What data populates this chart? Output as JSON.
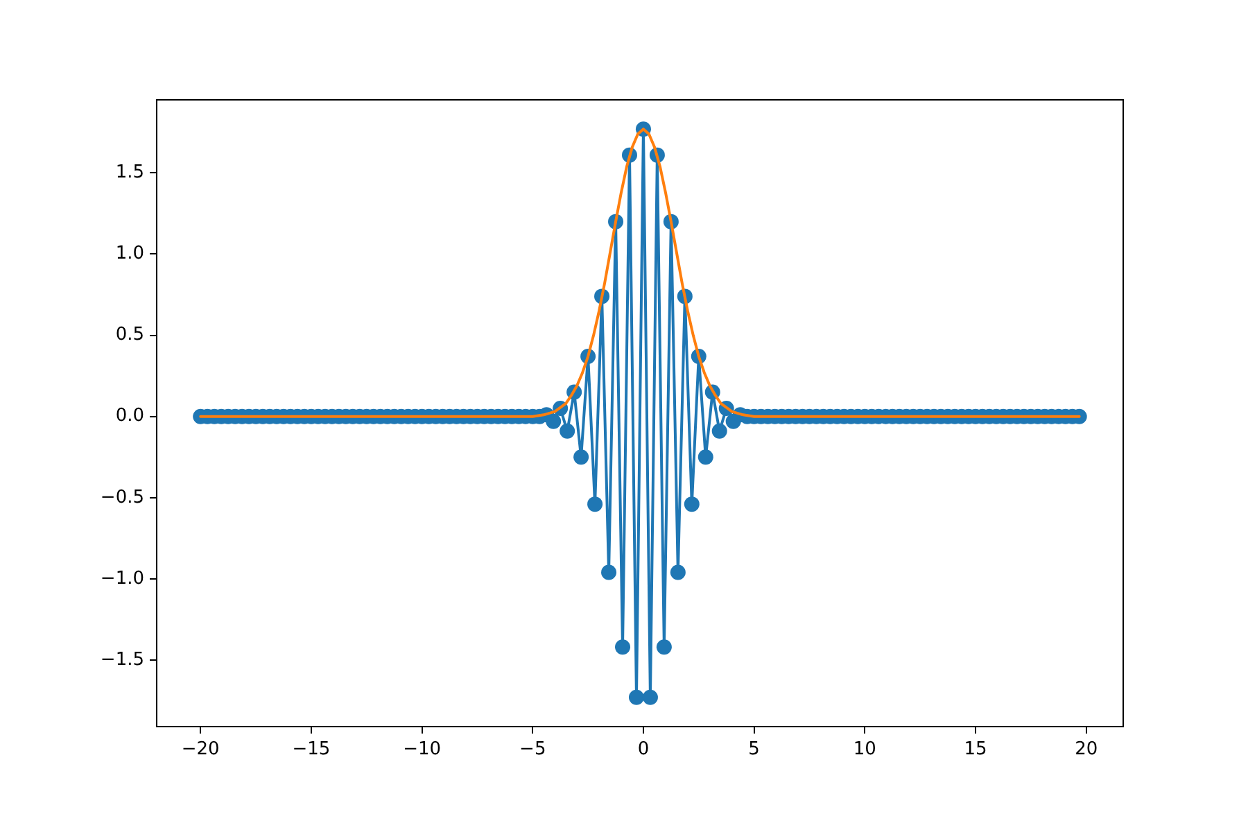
{
  "chart_data": {
    "type": "line",
    "xlim": [
      -21.98,
      21.67
    ],
    "xticks": [
      {
        "value": -20,
        "label": "−20"
      },
      {
        "value": -15,
        "label": "−15"
      },
      {
        "value": -10,
        "label": "−10"
      },
      {
        "value": -5,
        "label": "−5"
      },
      {
        "value": 0,
        "label": "0"
      },
      {
        "value": 5,
        "label": "5"
      },
      {
        "value": 10,
        "label": "10"
      },
      {
        "value": 15,
        "label": "15"
      },
      {
        "value": 20,
        "label": "20"
      }
    ],
    "ylim": [
      -1.91,
      1.95
    ],
    "yticks": [
      {
        "value": -1.5,
        "label": "−1.5"
      },
      {
        "value": -1,
        "label": "−1.0"
      },
      {
        "value": -0.5,
        "label": "−0.5"
      },
      {
        "value": 0,
        "label": "0.0"
      },
      {
        "value": 0.5,
        "label": "0.5"
      },
      {
        "value": 1,
        "label": "1.0"
      },
      {
        "value": 1.5,
        "label": "1.5"
      }
    ],
    "grid": false,
    "legend": false,
    "line_style": "solid",
    "series": [
      {
        "color": "#1f77b4",
        "marker": "circle",
        "x": [
          -20,
          -19.6875,
          -19.375,
          -19.0625,
          -18.75,
          -18.4375,
          -18.125,
          -17.8125,
          -17.5,
          -17.1875,
          -16.875,
          -16.5625,
          -16.25,
          -15.9375,
          -15.625,
          -15.3125,
          -15,
          -14.6875,
          -14.375,
          -14.0625,
          -13.75,
          -13.4375,
          -13.125,
          -12.8125,
          -12.5,
          -12.1875,
          -11.875,
          -11.5625,
          -11.25,
          -10.9375,
          -10.625,
          -10.3125,
          -10,
          -9.6875,
          -9.375,
          -9.0625,
          -8.75,
          -8.4375,
          -8.125,
          -7.8125,
          -7.5,
          -7.1875,
          -6.875,
          -6.5625,
          -6.25,
          -5.9375,
          -5.625,
          -5.3125,
          -5,
          -4.6875,
          -4.375,
          -4.0625,
          -3.75,
          -3.4375,
          -3.125,
          -2.8125,
          -2.5,
          -2.1875,
          -1.875,
          -1.5625,
          -1.25,
          -0.9375,
          -0.625,
          -0.3125,
          0,
          0.3125,
          0.625,
          0.9375,
          1.25,
          1.5625,
          1.875,
          2.1875,
          2.5,
          2.8125,
          3.125,
          3.4375,
          3.75,
          4.0625,
          4.375,
          4.6875,
          5,
          5.3125,
          5.625,
          5.9375,
          6.25,
          6.5625,
          6.875,
          7.1875,
          7.5,
          7.8125,
          8.125,
          8.4375,
          8.75,
          9.0625,
          9.375,
          9.6875,
          10,
          10.3125,
          10.625,
          10.9375,
          11.25,
          11.5625,
          11.875,
          12.1875,
          12.5,
          12.8125,
          13.125,
          13.4375,
          13.75,
          14.0625,
          14.375,
          14.6875,
          15,
          15.3125,
          15.625,
          15.9375,
          16.25,
          16.5625,
          16.875,
          17.1875,
          17.5,
          17.8125,
          18.125,
          18.4375,
          18.75,
          19.0625,
          19.375,
          19.6875
        ],
        "values": [
          0,
          0,
          0,
          0,
          0,
          0,
          0,
          0,
          0,
          0,
          0,
          0,
          0,
          0,
          0,
          0,
          0,
          0,
          0,
          0,
          0,
          0,
          0,
          0,
          0,
          0,
          0,
          0,
          0,
          0,
          0,
          0,
          0,
          0,
          0,
          0,
          0,
          0,
          0,
          0,
          0,
          0,
          0,
          0,
          0,
          0,
          0,
          0,
          0,
          0,
          0.01,
          -0.03,
          0.05,
          -0.09,
          0.15,
          -0.25,
          0.37,
          -0.54,
          0.74,
          -0.96,
          1.2,
          -1.42,
          1.61,
          -1.73,
          1.77,
          -1.73,
          1.61,
          -1.42,
          1.2,
          -0.96,
          0.74,
          -0.54,
          0.37,
          -0.25,
          0.15,
          -0.09,
          0.05,
          -0.03,
          0.01,
          0,
          0,
          0,
          0,
          0,
          0,
          0,
          0,
          0,
          0,
          0,
          0,
          0,
          0,
          0,
          0,
          0,
          0,
          0,
          0,
          0,
          0,
          0,
          0,
          0,
          0,
          0,
          0,
          0,
          0,
          0,
          0,
          0,
          0,
          0,
          0,
          0,
          0,
          0,
          0,
          0,
          0,
          0,
          0,
          0,
          0,
          0,
          0,
          0
        ]
      },
      {
        "color": "#ff7f0e",
        "marker": "none",
        "x": [
          -20,
          -6,
          -5,
          -4.5,
          -4,
          -3.5,
          -3.25,
          -3,
          -2.75,
          -2.5,
          -2.25,
          -2,
          -1.75,
          -1.5,
          -1.25,
          -1,
          -0.75,
          -0.5,
          -0.25,
          0,
          0.25,
          0.5,
          0.75,
          1,
          1.25,
          1.5,
          1.75,
          2,
          2.25,
          2.5,
          2.75,
          3,
          3.25,
          3.5,
          4,
          4.5,
          5,
          6,
          19.6875
        ],
        "values": [
          0,
          0,
          0,
          0.01,
          0.03,
          0.08,
          0.13,
          0.19,
          0.27,
          0.37,
          0.5,
          0.65,
          0.82,
          1.01,
          1.2,
          1.38,
          1.54,
          1.66,
          1.74,
          1.77,
          1.74,
          1.66,
          1.54,
          1.38,
          1.2,
          1.01,
          0.82,
          0.65,
          0.5,
          0.37,
          0.27,
          0.19,
          0.13,
          0.08,
          0.03,
          0.01,
          0,
          0,
          0
        ]
      }
    ]
  }
}
